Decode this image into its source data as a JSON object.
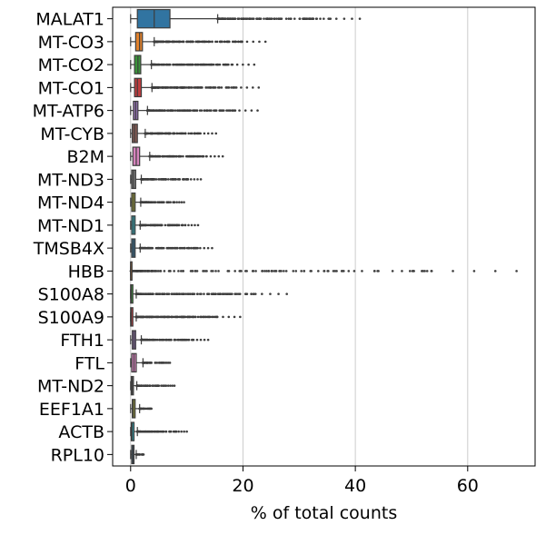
{
  "chart_data": {
    "type": "boxplot-horizontal",
    "title": "",
    "xlabel": "% of total counts",
    "ylabel": "",
    "xlim": [
      -3.2,
      72
    ],
    "xticks": [
      0,
      20,
      40,
      60
    ],
    "grid": "vertical",
    "series": [
      {
        "name": "MALAT1",
        "color": "#3174a1",
        "q1": 1.2,
        "median": 4.2,
        "q3": 7.0,
        "whisker_low": 0.0,
        "whisker_high": 15.5,
        "flier_max": 40.8
      },
      {
        "name": "MT-CO3",
        "color": "#e1812c",
        "q1": 0.9,
        "median": 1.6,
        "q3": 2.1,
        "whisker_low": 0.0,
        "whisker_high": 4.2,
        "flier_max": 24.0
      },
      {
        "name": "MT-CO2",
        "color": "#3a923a",
        "q1": 0.7,
        "median": 1.3,
        "q3": 1.8,
        "whisker_low": 0.0,
        "whisker_high": 3.7,
        "flier_max": 22.0
      },
      {
        "name": "MT-CO1",
        "color": "#c03d3e",
        "q1": 0.7,
        "median": 1.2,
        "q3": 1.9,
        "whisker_low": 0.0,
        "whisker_high": 3.8,
        "flier_max": 22.8
      },
      {
        "name": "MT-ATP6",
        "color": "#9372b2",
        "q1": 0.5,
        "median": 0.9,
        "q3": 1.3,
        "whisker_low": 0.0,
        "whisker_high": 3.0,
        "flier_max": 22.6
      },
      {
        "name": "MT-CYB",
        "color": "#845b53",
        "q1": 0.3,
        "median": 0.7,
        "q3": 1.2,
        "whisker_low": 0.0,
        "whisker_high": 2.6,
        "flier_max": 15.2
      },
      {
        "name": "B2M",
        "color": "#d684bd",
        "q1": 0.4,
        "median": 1.0,
        "q3": 1.6,
        "whisker_low": 0.0,
        "whisker_high": 3.4,
        "flier_max": 16.4
      },
      {
        "name": "MT-ND3",
        "color": "#7f7f7f",
        "q1": 0.2,
        "median": 0.5,
        "q3": 0.9,
        "whisker_low": 0.0,
        "whisker_high": 1.9,
        "flier_max": 12.5
      },
      {
        "name": "MT-ND4",
        "color": "#a9aa35",
        "q1": 0.2,
        "median": 0.5,
        "q3": 0.8,
        "whisker_low": 0.0,
        "whisker_high": 1.8,
        "flier_max": 9.5
      },
      {
        "name": "MT-ND1",
        "color": "#2ebdcd",
        "q1": 0.2,
        "median": 0.5,
        "q3": 0.8,
        "whisker_low": 0.0,
        "whisker_high": 1.7,
        "flier_max": 12.0
      },
      {
        "name": "TMSB4X",
        "color": "#3174a1",
        "q1": 0.2,
        "median": 0.5,
        "q3": 0.8,
        "whisker_low": 0.0,
        "whisker_high": 1.7,
        "flier_max": 14.5
      },
      {
        "name": "HBB",
        "color": "#e1812c",
        "q1": 0.0,
        "median": 0.0,
        "q3": 0.02,
        "whisker_low": 0.0,
        "whisker_high": 0.05,
        "flier_max": 68.7
      },
      {
        "name": "S100A8",
        "color": "#3a923a",
        "q1": 0.0,
        "median": 0.1,
        "q3": 0.4,
        "whisker_low": 0.0,
        "whisker_high": 1.0,
        "flier_max": 27.8
      },
      {
        "name": "S100A9",
        "color": "#c03d3e",
        "q1": 0.0,
        "median": 0.1,
        "q3": 0.4,
        "whisker_low": 0.0,
        "whisker_high": 1.0,
        "flier_max": 19.5
      },
      {
        "name": "FTH1",
        "color": "#9372b2",
        "q1": 0.3,
        "median": 0.6,
        "q3": 0.9,
        "whisker_low": 0.0,
        "whisker_high": 1.9,
        "flier_max": 13.8
      },
      {
        "name": "FTL",
        "color": "#d684bd",
        "q1": 0.2,
        "median": 0.6,
        "q3": 1.0,
        "whisker_low": 0.0,
        "whisker_high": 2.2,
        "flier_max": 7.0
      },
      {
        "name": "MT-ND2",
        "color": "#7f7f7f",
        "q1": 0.1,
        "median": 0.3,
        "q3": 0.5,
        "whisker_low": 0.0,
        "whisker_high": 1.1,
        "flier_max": 7.8
      },
      {
        "name": "EEF1A1",
        "color": "#a9aa35",
        "q1": 0.3,
        "median": 0.5,
        "q3": 0.8,
        "whisker_low": 0.0,
        "whisker_high": 1.6,
        "flier_max": 3.7
      },
      {
        "name": "ACTB",
        "color": "#2ebdcd",
        "q1": 0.1,
        "median": 0.3,
        "q3": 0.6,
        "whisker_low": 0.0,
        "whisker_high": 1.2,
        "flier_max": 10.0
      },
      {
        "name": "RPL10",
        "color": "#3174a1",
        "q1": 0.2,
        "median": 0.4,
        "q3": 0.6,
        "whisker_low": 0.0,
        "whisker_high": 1.0,
        "flier_max": 2.3
      }
    ]
  }
}
